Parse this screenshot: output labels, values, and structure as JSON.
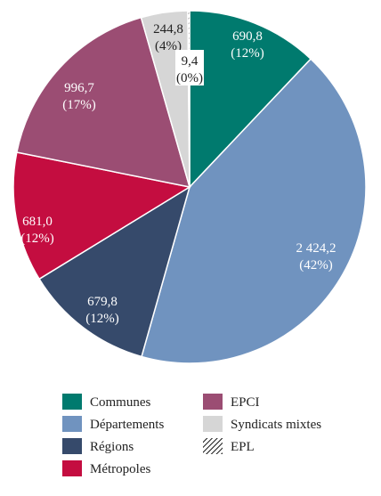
{
  "chart_data": {
    "type": "pie",
    "slices": [
      {
        "name": "Communes",
        "value": 690.8,
        "percent_label": "(12%)",
        "value_label": "690,8",
        "color": "#007a6e",
        "label_color": "#ffffff"
      },
      {
        "name": "Départements",
        "value": 2424.2,
        "percent_label": "(42%)",
        "value_label": "2 424,2",
        "color": "#7093bf",
        "label_color": "#ffffff"
      },
      {
        "name": "Régions",
        "value": 679.8,
        "percent_label": "(12%)",
        "value_label": "679,8",
        "color": "#364a6b",
        "label_color": "#ffffff"
      },
      {
        "name": "Métropoles",
        "value": 681.0,
        "percent_label": "(12%)",
        "value_label": "681,0",
        "color": "#c40d40",
        "label_color": "#ffffff"
      },
      {
        "name": "EPCI",
        "value": 996.7,
        "percent_label": "(17%)",
        "value_label": "996,7",
        "color": "#9b4d73",
        "label_color": "#ffffff"
      },
      {
        "name": "Syndicats mixtes",
        "value": 244.8,
        "percent_label": "(4%)",
        "value_label": "244,8",
        "color": "#d6d6d6",
        "label_color": "#222222"
      },
      {
        "name": "EPL",
        "value": 9.4,
        "percent_label": "(0%)",
        "value_label": "9,4",
        "color": "hatch",
        "label_color": "#222222"
      }
    ],
    "legend": {
      "placement": "bottom",
      "items": [
        "Communes",
        "EPCI",
        "Départements",
        "Syndicats mixtes",
        "Régions",
        "EPL",
        "Métropoles"
      ]
    }
  }
}
